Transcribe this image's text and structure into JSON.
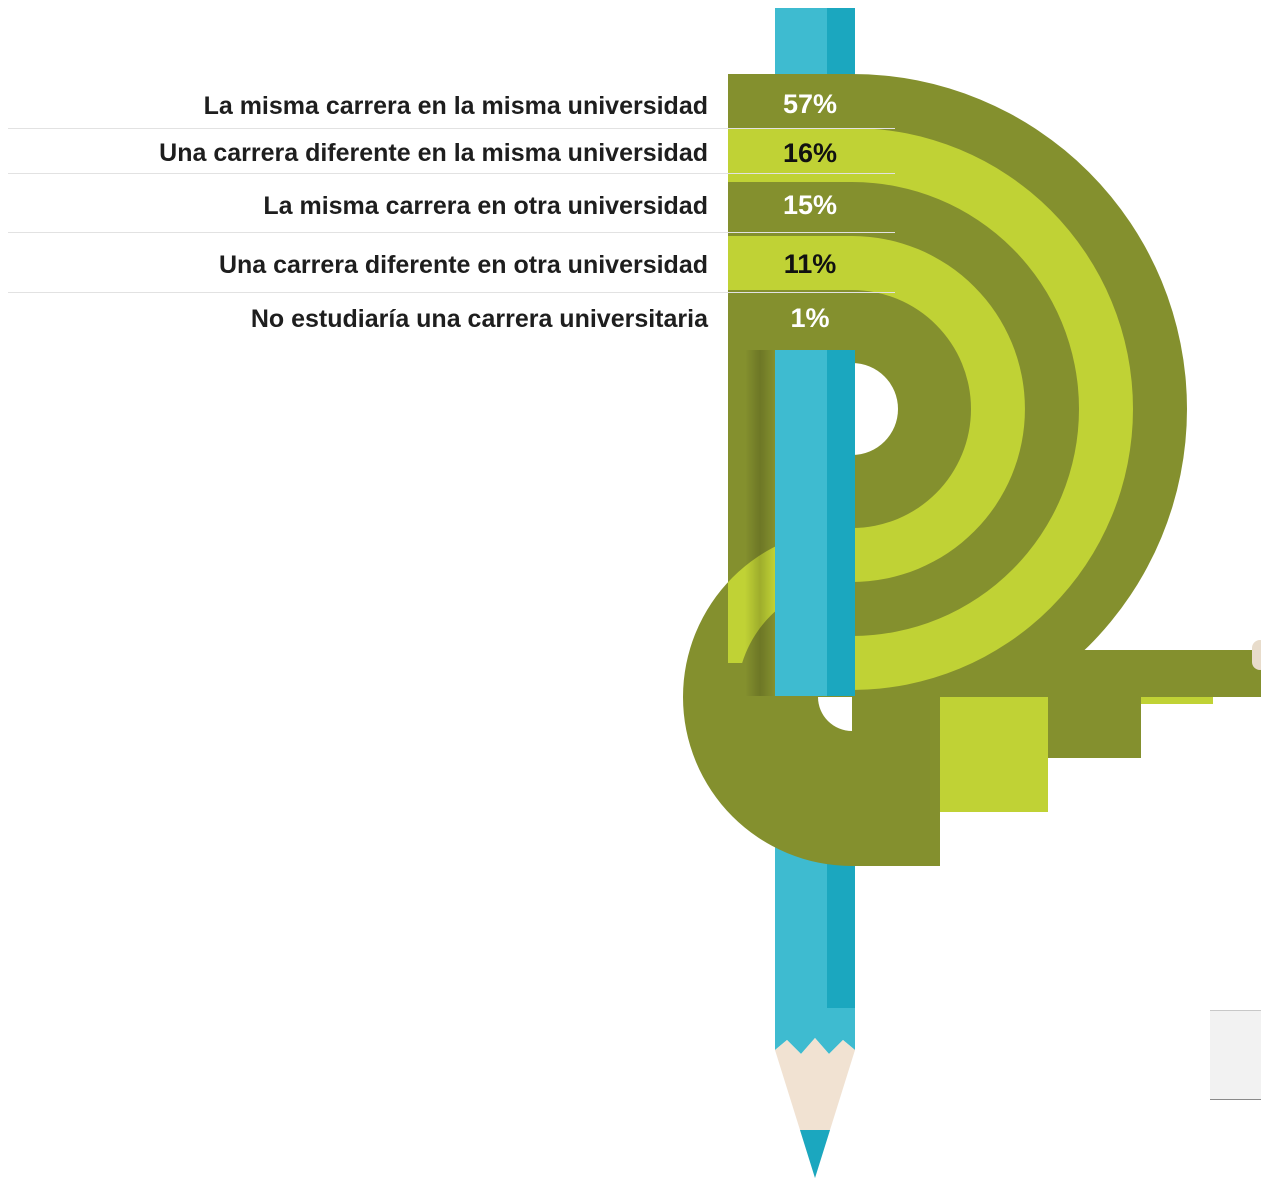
{
  "chart_data": {
    "type": "bar",
    "categories": [
      "La misma carrera en la misma universidad",
      "Una carrera diferente en la misma universidad",
      "La misma carrera en otra universidad",
      "Una carrera diferente en otra universidad",
      "No estudiaría una carrera universitaria"
    ],
    "values": [
      57,
      16,
      15,
      11,
      1
    ],
    "value_labels": [
      "57%",
      "16%",
      "15%",
      "11%",
      "1%"
    ],
    "unit": "%",
    "title": "",
    "xlabel": "",
    "ylabel": ""
  },
  "colors": {
    "dark_green": "#84902e",
    "light_green": "#c0d235",
    "pencil_blue": "#3ebbd0",
    "pencil_blue_dark": "#1ba7bf",
    "pencil_wood": "#f1e2d2",
    "label_text": "#1e1e1e"
  }
}
